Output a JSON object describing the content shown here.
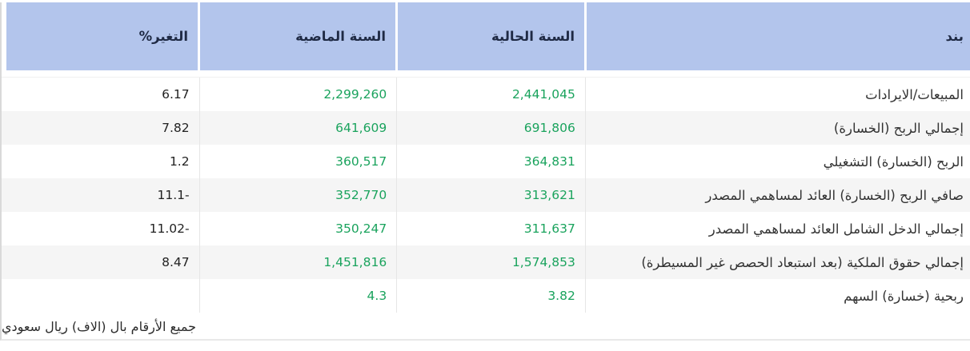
{
  "table": {
    "columns": [
      {
        "key": "item",
        "label": "بند"
      },
      {
        "key": "current",
        "label": "السنة الحالية"
      },
      {
        "key": "previous",
        "label": "السنة الماضية"
      },
      {
        "key": "change",
        "label": "التغير%"
      }
    ],
    "rows": [
      {
        "item": "المبيعات/الايرادات",
        "current": "2,441,045",
        "previous": "2,299,260",
        "change": "6.17"
      },
      {
        "item": "إجمالي الربح (الخسارة)",
        "current": "691,806",
        "previous": "641,609",
        "change": "7.82"
      },
      {
        "item": "الربح (الخسارة) التشغيلي",
        "current": "364,831",
        "previous": "360,517",
        "change": "1.2"
      },
      {
        "item": "صافي الربح (الخسارة) العائد لمساهمي المصدر",
        "current": "313,621",
        "previous": "352,770",
        "change": "-11.1"
      },
      {
        "item": "إجمالي الدخل الشامل العائد لمساهمي المصدر",
        "current": "311,637",
        "previous": "350,247",
        "change": "-11.02"
      },
      {
        "item": "إجمالي حقوق الملكية (بعد استبعاد الحصص غير المسيطرة)",
        "current": "1,574,853",
        "previous": "1,451,816",
        "change": "8.47"
      },
      {
        "item": "ربحية (خسارة) السهم",
        "current": "3.82",
        "previous": "4.3",
        "change": ""
      }
    ],
    "footnote": "جميع الأرقام بال (الاف) ريال سعودي"
  },
  "colors": {
    "header_bg": "#b3c5ec",
    "header_text": "#1f2a44",
    "value_green": "#1aa35d",
    "row_alt_bg": "#f5f5f5",
    "item_text": "#333333",
    "change_text": "#222222",
    "border_light": "#e6e6e6"
  }
}
